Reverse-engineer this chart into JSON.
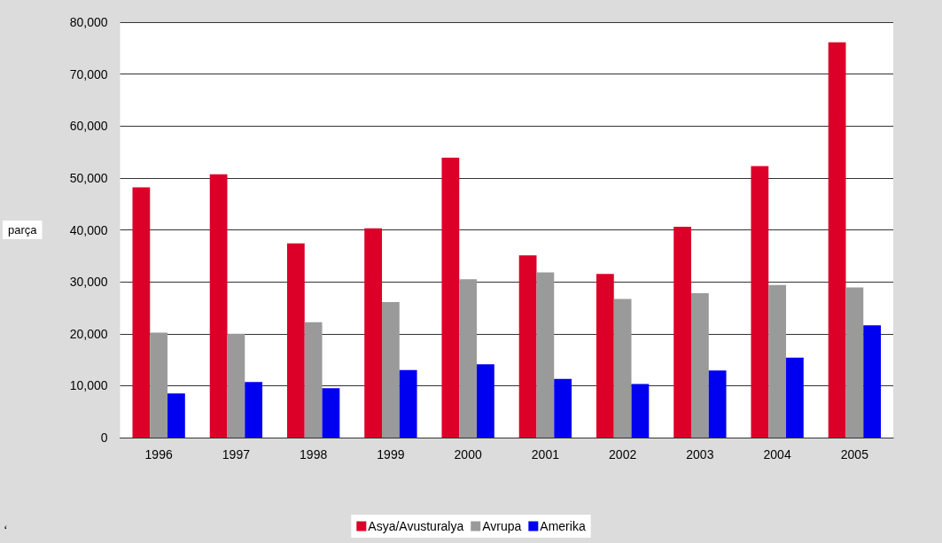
{
  "chart_data": {
    "type": "bar",
    "ylabel": "parça",
    "categories": [
      "1996",
      "1997",
      "1998",
      "1999",
      "2000",
      "2001",
      "2002",
      "2003",
      "2004",
      "2005"
    ],
    "series": [
      {
        "name": "Asya/Avusturalya",
        "color": "#dc0029",
        "values": [
          48200,
          50700,
          37400,
          40300,
          53900,
          35100,
          31500,
          40600,
          52300,
          76100
        ]
      },
      {
        "name": "Avrupa",
        "color": "#9a9a9a",
        "values": [
          20200,
          20000,
          22200,
          26100,
          30500,
          31800,
          26700,
          27800,
          29400,
          28900
        ]
      },
      {
        "name": "Amerika",
        "color": "#0000f0",
        "values": [
          8500,
          10700,
          9500,
          13000,
          14100,
          11300,
          10300,
          12900,
          15400,
          21600
        ]
      }
    ],
    "ylim": [
      0,
      80000
    ],
    "yticks": [
      {
        "value": 0,
        "label": "0"
      },
      {
        "value": 10000,
        "label": "10,000"
      },
      {
        "value": 20000,
        "label": "20,000"
      },
      {
        "value": 30000,
        "label": "30,000"
      },
      {
        "value": 40000,
        "label": "40,000"
      },
      {
        "value": 50000,
        "label": "50,000"
      },
      {
        "value": 60000,
        "label": "60,000"
      },
      {
        "value": 70000,
        "label": "70,000"
      },
      {
        "value": 80000,
        "label": "80,000"
      }
    ],
    "grid": "y",
    "legend": "bottom",
    "annotations": [
      "‘"
    ]
  }
}
